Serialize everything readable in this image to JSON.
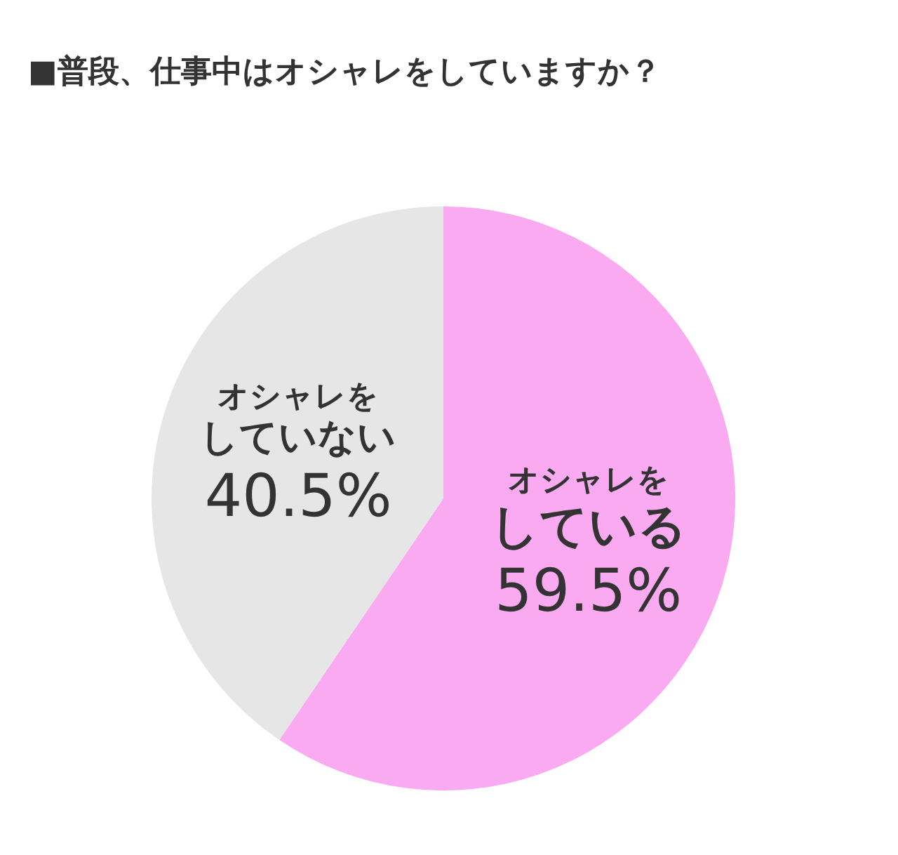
{
  "chart_data": {
    "type": "pie",
    "title": "■普段、仕事中はオシャレをしていますか？",
    "categories": [
      "オシャレをしている",
      "オシャレをしていない"
    ],
    "values": [
      59.5,
      40.5
    ],
    "colors": [
      "#f9aaf0",
      "#e6e6e6"
    ],
    "value_labels": [
      "59.5%",
      "40.5%"
    ]
  }
}
